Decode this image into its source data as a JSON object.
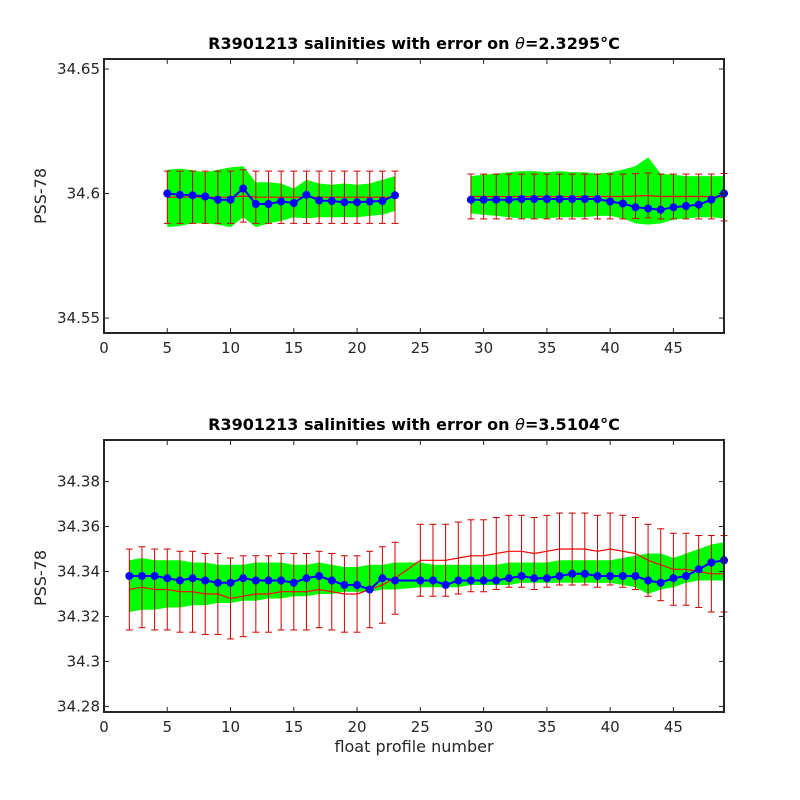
{
  "chart_data": [
    {
      "type": "line",
      "title_prefix": "R3901213 salinities with error on ",
      "title_symbol": "θ",
      "title_value": "=2.3295",
      "title_unit": "°C",
      "ylabel": "PSS-78",
      "xlabel": "",
      "xlim": [
        0,
        49
      ],
      "ylim": [
        34.544,
        34.654
      ],
      "xticks": [
        0,
        5,
        10,
        15,
        20,
        25,
        30,
        35,
        40,
        45
      ],
      "yticks": [
        34.55,
        34.6,
        34.65
      ],
      "ytick_labels": [
        "34.55",
        "34.6",
        "34.65"
      ],
      "colors": {
        "band": "#00ff00",
        "mapped": "#ff0000",
        "errorbar": "#cc0000",
        "float": "#0000ff"
      },
      "x": [
        5,
        6,
        7,
        8,
        9,
        10,
        11,
        12,
        13,
        14,
        15,
        16,
        17,
        18,
        19,
        20,
        21,
        22,
        23,
        null,
        29,
        30,
        31,
        32,
        33,
        34,
        35,
        36,
        37,
        38,
        39,
        40,
        41,
        42,
        43,
        44,
        45,
        46,
        47,
        48,
        49
      ],
      "float_salinity": [
        34.6,
        34.5995,
        34.5993,
        34.5988,
        34.5975,
        34.5975,
        34.602,
        34.5958,
        34.5958,
        34.5968,
        34.5962,
        34.5995,
        34.5972,
        34.597,
        34.5965,
        34.5965,
        34.5968,
        34.597,
        34.5993,
        null,
        34.5975,
        34.5975,
        34.5975,
        34.5975,
        34.5978,
        34.5978,
        34.5978,
        34.5978,
        34.5978,
        34.5978,
        34.5978,
        34.5968,
        34.596,
        34.5945,
        34.594,
        34.5935,
        34.5945,
        34.595,
        34.5955,
        34.5975,
        34.6
      ],
      "band_upper": [
        34.6095,
        34.61,
        34.6093,
        34.6085,
        34.6095,
        34.6105,
        34.611,
        34.6045,
        34.6045,
        34.604,
        34.602,
        34.6055,
        34.604,
        34.6035,
        34.604,
        34.6035,
        34.604,
        34.6055,
        34.607,
        null,
        34.607,
        34.6075,
        34.608,
        34.6085,
        34.609,
        34.609,
        34.6085,
        34.609,
        34.6085,
        34.6085,
        34.608,
        34.6085,
        34.6095,
        34.611,
        34.6145,
        34.608,
        34.6075,
        34.607,
        34.607,
        34.607,
        34.607
      ],
      "band_lower": [
        34.5865,
        34.587,
        34.588,
        34.588,
        34.5875,
        34.5865,
        34.5905,
        34.5865,
        34.588,
        34.589,
        34.5905,
        34.59,
        34.5905,
        34.5905,
        34.5905,
        34.5905,
        34.591,
        34.5915,
        34.593,
        null,
        34.592,
        34.5915,
        34.591,
        34.5905,
        34.59,
        34.59,
        34.59,
        34.5905,
        34.5905,
        34.5905,
        34.591,
        34.591,
        34.59,
        34.588,
        34.5875,
        34.588,
        34.5895,
        34.59,
        34.5905,
        34.5905,
        34.59
      ],
      "mapped_salinity": [
        34.5985,
        34.5985,
        34.5985,
        34.5985,
        34.5985,
        34.5985,
        34.599,
        34.5985,
        34.5985,
        34.5985,
        34.5985,
        34.5985,
        34.5985,
        34.5985,
        34.5985,
        34.5985,
        34.5985,
        34.5985,
        34.5985,
        null,
        34.5988,
        34.5988,
        34.5988,
        34.5988,
        34.5988,
        34.5988,
        34.5988,
        34.5988,
        34.5988,
        34.5988,
        34.5988,
        34.5988,
        34.5988,
        34.599,
        34.5992,
        34.5988,
        34.5988,
        34.5988,
        34.5988,
        34.5988,
        34.5985
      ],
      "mapped_error": [
        0.0105,
        0.0105,
        0.0105,
        0.0105,
        0.0105,
        0.0105,
        0.0105,
        0.0105,
        0.0105,
        0.0105,
        0.0105,
        0.0105,
        0.0105,
        0.0105,
        0.0105,
        0.0105,
        0.0105,
        0.0105,
        0.0105,
        null,
        0.009,
        0.009,
        0.009,
        0.009,
        0.009,
        0.009,
        0.009,
        0.009,
        0.009,
        0.009,
        0.009,
        0.009,
        0.009,
        0.009,
        0.009,
        0.009,
        0.009,
        0.009,
        0.009,
        0.009,
        0.0095
      ]
    },
    {
      "type": "line",
      "title_prefix": "R3901213 salinities with error on ",
      "title_symbol": "θ",
      "title_value": "=3.5104",
      "title_unit": "°C",
      "ylabel": "PSS-78",
      "xlabel": "float profile number",
      "xlim": [
        0,
        49
      ],
      "ylim": [
        34.2775,
        34.3985
      ],
      "xticks": [
        0,
        5,
        10,
        15,
        20,
        25,
        30,
        35,
        40,
        45
      ],
      "yticks": [
        34.28,
        34.3,
        34.32,
        34.34,
        34.36,
        34.38
      ],
      "ytick_labels": [
        "34.28",
        "34.3",
        "34.32",
        "34.34",
        "34.36",
        "34.38"
      ],
      "colors": {
        "band": "#00ff00",
        "mapped": "#ff0000",
        "errorbar": "#cc0000",
        "float": "#0000ff"
      },
      "x": [
        2,
        3,
        4,
        5,
        6,
        7,
        8,
        9,
        10,
        11,
        12,
        13,
        14,
        15,
        16,
        17,
        18,
        19,
        20,
        21,
        22,
        23,
        25,
        26,
        27,
        28,
        29,
        30,
        31,
        32,
        33,
        34,
        35,
        36,
        37,
        38,
        39,
        40,
        41,
        42,
        43,
        44,
        45,
        46,
        47,
        48,
        49
      ],
      "float_salinity": [
        34.338,
        34.338,
        34.338,
        34.337,
        34.336,
        34.337,
        34.336,
        34.335,
        34.335,
        34.337,
        34.336,
        34.336,
        34.336,
        34.335,
        34.337,
        34.338,
        34.336,
        34.334,
        34.334,
        34.332,
        34.337,
        34.336,
        34.336,
        34.336,
        34.334,
        34.336,
        34.336,
        34.336,
        34.336,
        34.337,
        34.338,
        34.337,
        34.337,
        34.338,
        34.339,
        34.339,
        34.338,
        34.338,
        34.338,
        34.338,
        34.336,
        34.335,
        34.337,
        34.338,
        34.341,
        34.344,
        34.345
      ],
      "band_upper": [
        34.345,
        34.346,
        34.345,
        34.345,
        34.345,
        34.344,
        34.344,
        34.343,
        34.343,
        34.343,
        34.344,
        34.344,
        34.344,
        34.343,
        34.343,
        34.344,
        34.343,
        34.342,
        34.342,
        34.343,
        34.343,
        34.344,
        34.344,
        34.343,
        34.343,
        34.343,
        34.343,
        34.343,
        34.343,
        34.344,
        34.344,
        34.344,
        34.344,
        34.345,
        34.345,
        34.345,
        34.345,
        34.345,
        34.346,
        34.347,
        34.348,
        34.348,
        34.346,
        34.348,
        34.35,
        34.352,
        34.353
      ],
      "band_lower": [
        34.322,
        34.323,
        34.323,
        34.324,
        34.324,
        34.325,
        34.325,
        34.326,
        34.326,
        34.327,
        34.327,
        34.328,
        34.328,
        34.329,
        34.329,
        34.33,
        34.33,
        34.331,
        34.331,
        34.331,
        34.332,
        34.332,
        34.333,
        34.333,
        34.333,
        34.333,
        34.334,
        34.334,
        34.334,
        34.334,
        34.335,
        34.335,
        34.335,
        34.335,
        34.335,
        34.335,
        34.335,
        34.335,
        34.334,
        34.333,
        34.33,
        34.332,
        34.333,
        34.335,
        34.336,
        34.336,
        34.336
      ],
      "mapped_salinity": [
        34.332,
        34.333,
        34.332,
        34.332,
        34.331,
        34.331,
        34.33,
        34.33,
        34.328,
        34.329,
        34.33,
        34.33,
        34.331,
        34.331,
        34.331,
        34.332,
        34.331,
        34.33,
        34.33,
        34.332,
        34.334,
        34.337,
        34.345,
        34.345,
        34.345,
        34.346,
        34.347,
        34.347,
        34.348,
        34.349,
        34.349,
        34.348,
        34.349,
        34.35,
        34.35,
        34.35,
        34.349,
        34.35,
        34.349,
        34.348,
        34.345,
        34.343,
        34.341,
        34.341,
        34.34,
        34.339,
        34.339
      ],
      "mapped_error": [
        0.018,
        0.018,
        0.018,
        0.018,
        0.018,
        0.018,
        0.018,
        0.018,
        0.018,
        0.018,
        0.017,
        0.017,
        0.017,
        0.017,
        0.017,
        0.017,
        0.017,
        0.017,
        0.017,
        0.017,
        0.017,
        0.016,
        0.016,
        0.016,
        0.016,
        0.016,
        0.016,
        0.016,
        0.016,
        0.016,
        0.016,
        0.016,
        0.016,
        0.016,
        0.016,
        0.016,
        0.016,
        0.016,
        0.016,
        0.016,
        0.016,
        0.016,
        0.016,
        0.016,
        0.016,
        0.017,
        0.017
      ]
    }
  ]
}
